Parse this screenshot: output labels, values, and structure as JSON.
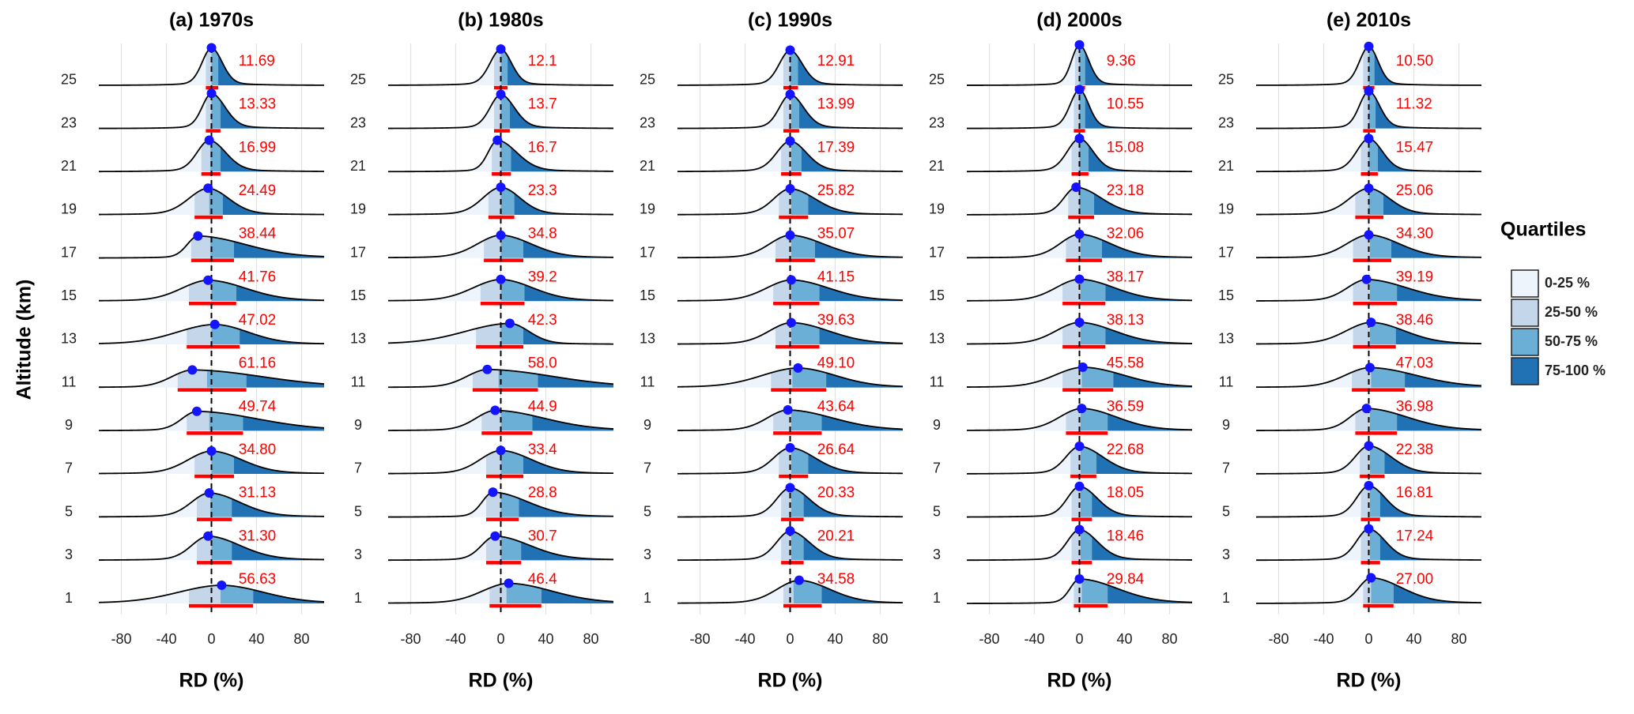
{
  "chart_data": [
    {
      "type": "ridgeline",
      "title": "(a) 1970s",
      "x_label": "RD (%)",
      "y_label": "Altitude (km)",
      "categories": [
        1,
        3,
        5,
        7,
        9,
        11,
        13,
        15,
        17,
        19,
        21,
        23,
        25
      ],
      "xlim": [
        -100,
        100
      ],
      "xticks": [
        -80,
        -40,
        0,
        40,
        80
      ],
      "ref_line": 0,
      "values": [
        56.63,
        31.3,
        31.13,
        34.8,
        49.74,
        61.16,
        47.02,
        41.76,
        38.44,
        24.49,
        16.99,
        13.33,
        11.69
      ],
      "value_labels": [
        "56.63",
        "31.30",
        "31.13",
        "34.80",
        "49.74",
        "61.16",
        "47.02",
        "41.76",
        "38.44",
        "24.49",
        "16.99",
        "13.33",
        "11.69"
      ],
      "q1": [
        -20,
        -13,
        -13,
        -15,
        -22,
        -30,
        -22,
        -20,
        -18,
        -15,
        -9,
        -5,
        -5
      ],
      "median": [
        8,
        0,
        -1,
        0,
        -2,
        -4,
        0,
        0,
        -1,
        -2,
        -1,
        0,
        0
      ],
      "q3": [
        37,
        18,
        18,
        20,
        28,
        31,
        25,
        22,
        20,
        10,
        8,
        8,
        6
      ],
      "peak": [
        9,
        -3,
        -2,
        0,
        -13,
        -17,
        3,
        -3,
        -12,
        -3,
        -2,
        0,
        0
      ]
    },
    {
      "type": "ridgeline",
      "title": "(b) 1980s",
      "x_label": "RD (%)",
      "categories": [
        1,
        3,
        5,
        7,
        9,
        11,
        13,
        15,
        17,
        19,
        21,
        23,
        25
      ],
      "xlim": [
        -100,
        100
      ],
      "xticks": [
        -80,
        -40,
        0,
        40,
        80
      ],
      "ref_line": 0,
      "values": [
        46.4,
        30.7,
        28.8,
        33.4,
        44.9,
        58,
        42.3,
        39.2,
        34.8,
        23.3,
        16.7,
        13.7,
        12.1
      ],
      "value_labels": [
        "46.4",
        "30.7",
        "28.8",
        "33.4",
        "44.9",
        "58.0",
        "42.3",
        "39.2",
        "34.8",
        "23.3",
        "16.7",
        "13.7",
        "12.1"
      ],
      "q1": [
        -10,
        -13,
        -13,
        -13,
        -17,
        -25,
        -22,
        -18,
        -15,
        -11,
        -8,
        -6,
        -6
      ],
      "median": [
        5,
        0,
        0,
        0,
        0,
        -2,
        0,
        0,
        0,
        0,
        0,
        0,
        0
      ],
      "q3": [
        36,
        18,
        16,
        20,
        28,
        33,
        20,
        21,
        20,
        12,
        9,
        8,
        6
      ],
      "peak": [
        7,
        -5,
        -7,
        0,
        -5,
        -12,
        8,
        0,
        0,
        0,
        -3,
        0,
        0
      ]
    },
    {
      "type": "ridgeline",
      "title": "(c) 1990s",
      "x_label": "RD (%)",
      "categories": [
        1,
        3,
        5,
        7,
        9,
        11,
        13,
        15,
        17,
        19,
        21,
        23,
        25
      ],
      "xlim": [
        -100,
        100
      ],
      "xticks": [
        -80,
        -40,
        0,
        40,
        80
      ],
      "ref_line": 0,
      "values": [
        34.58,
        20.21,
        20.33,
        26.64,
        43.64,
        49.1,
        39.63,
        41.15,
        35.07,
        25.82,
        17.39,
        13.99,
        12.91
      ],
      "value_labels": [
        "34.58",
        "20.21",
        "20.33",
        "26.64",
        "43.64",
        "49.10",
        "39.63",
        "41.15",
        "35.07",
        "25.82",
        "17.39",
        "13.99",
        "12.91"
      ],
      "q1": [
        -6,
        -8,
        -8,
        -10,
        -15,
        -17,
        -13,
        -15,
        -13,
        -10,
        -8,
        -6,
        -6
      ],
      "median": [
        3,
        1,
        1,
        1,
        1,
        2,
        1,
        1,
        1,
        1,
        1,
        1,
        0
      ],
      "q3": [
        28,
        12,
        12,
        16,
        28,
        32,
        26,
        26,
        22,
        16,
        10,
        8,
        7
      ],
      "peak": [
        8,
        0,
        0,
        0,
        -2,
        7,
        1,
        1,
        0,
        0,
        0,
        0,
        0
      ]
    },
    {
      "type": "ridgeline",
      "title": "(d) 2000s",
      "x_label": "RD (%)",
      "categories": [
        1,
        3,
        5,
        7,
        9,
        11,
        13,
        15,
        17,
        19,
        21,
        23,
        25
      ],
      "xlim": [
        -100,
        100
      ],
      "xticks": [
        -80,
        -40,
        0,
        40,
        80
      ],
      "ref_line": 0,
      "values": [
        29.84,
        18.46,
        18.05,
        22.68,
        36.59,
        45.58,
        38.13,
        38.17,
        32.06,
        23.18,
        15.08,
        10.55,
        9.36
      ],
      "value_labels": [
        "29.84",
        "18.46",
        "18.05",
        "22.68",
        "36.59",
        "45.58",
        "38.13",
        "38.17",
        "32.06",
        "23.18",
        "15.08",
        "10.55",
        "9.36"
      ],
      "q1": [
        -5,
        -7,
        -7,
        -8,
        -12,
        -15,
        -15,
        -15,
        -12,
        -10,
        -7,
        -5,
        -4
      ],
      "median": [
        2,
        1,
        1,
        1,
        1,
        2,
        1,
        1,
        1,
        0,
        0,
        0,
        0
      ],
      "q3": [
        25,
        11,
        11,
        15,
        25,
        30,
        23,
        23,
        20,
        13,
        8,
        5,
        5
      ],
      "peak": [
        0,
        0,
        0,
        0,
        2,
        3,
        0,
        0,
        0,
        -3,
        0,
        0,
        0
      ]
    },
    {
      "type": "ridgeline",
      "title": "(e) 2010s",
      "x_label": "RD (%)",
      "categories": [
        1,
        3,
        5,
        7,
        9,
        11,
        13,
        15,
        17,
        19,
        21,
        23,
        25
      ],
      "xlim": [
        -100,
        100
      ],
      "xticks": [
        -80,
        -40,
        0,
        40,
        80
      ],
      "ref_line": 0,
      "values": [
        27,
        17.24,
        16.81,
        22.38,
        36.98,
        47.03,
        38.46,
        39.19,
        34.3,
        25.06,
        15.47,
        11.32,
        10.5
      ],
      "value_labels": [
        "27.00",
        "17.24",
        "16.81",
        "22.38",
        "36.98",
        "47.03",
        "38.46",
        "39.19",
        "34.30",
        "25.06",
        "15.47",
        "11.32",
        "10.50"
      ],
      "q1": [
        -5,
        -7,
        -7,
        -8,
        -12,
        -15,
        -14,
        -14,
        -14,
        -12,
        -7,
        -5,
        -5
      ],
      "median": [
        2,
        1,
        1,
        1,
        1,
        2,
        1,
        1,
        1,
        0,
        0,
        0,
        0
      ],
      "q3": [
        22,
        10,
        10,
        14,
        25,
        32,
        24,
        25,
        20,
        13,
        8,
        6,
        5
      ],
      "peak": [
        2,
        0,
        0,
        0,
        -2,
        1,
        2,
        -2,
        0,
        0,
        0,
        0,
        0
      ]
    }
  ],
  "legend": {
    "title": "Quartiles",
    "entries": [
      {
        "name": "0-25 %",
        "color": "#eef4fb"
      },
      {
        "name": "25-50 %",
        "color": "#c3d6ea"
      },
      {
        "name": "50-75 %",
        "color": "#6baed6"
      },
      {
        "name": "75-100 %",
        "color": "#2171b5"
      }
    ]
  },
  "bar_color": "#ff0000",
  "dot_color": "#1414ff",
  "label_color": "#ff0000"
}
